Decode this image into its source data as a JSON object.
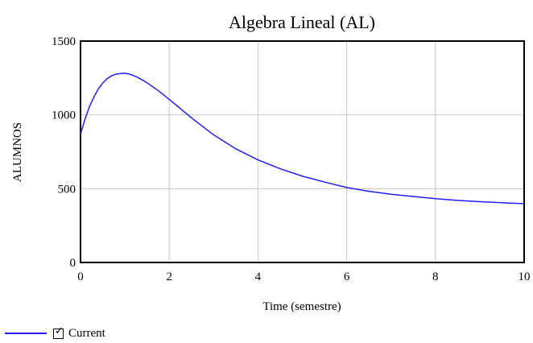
{
  "chart_data": {
    "type": "line",
    "title": "Algebra Lineal (AL)",
    "xlabel": "Time (semestre)",
    "ylabel": "ALUMNOS",
    "xlim": [
      0,
      10
    ],
    "ylim": [
      0,
      1500
    ],
    "xticks": [
      "0",
      "2",
      "4",
      "6",
      "8",
      "10"
    ],
    "yticks": [
      "0",
      "500",
      "1000",
      "1500"
    ],
    "grid": true,
    "legend_position": "bottom-left",
    "series": [
      {
        "name": "Current",
        "color": "#1f1fff",
        "x": [
          0,
          0.1,
          0.2,
          0.3,
          0.4,
          0.5,
          0.6,
          0.7,
          0.8,
          0.9,
          1.0,
          1.1,
          1.2,
          1.3,
          1.4,
          1.5,
          1.75,
          2.0,
          2.5,
          3.0,
          3.5,
          4.0,
          4.5,
          5.0,
          5.5,
          6.0,
          6.5,
          7.0,
          7.5,
          8.0,
          8.5,
          9.0,
          9.5,
          10.0
        ],
        "y": [
          870,
          970,
          1055,
          1120,
          1175,
          1215,
          1245,
          1265,
          1276,
          1280,
          1282,
          1277,
          1266,
          1252,
          1235,
          1217,
          1165,
          1105,
          980,
          865,
          770,
          695,
          635,
          585,
          545,
          508,
          482,
          462,
          447,
          432,
          421,
          412,
          405,
          398
        ]
      }
    ]
  },
  "legend": {
    "checkbox_mark": "✓",
    "checkbox_checked": true
  }
}
